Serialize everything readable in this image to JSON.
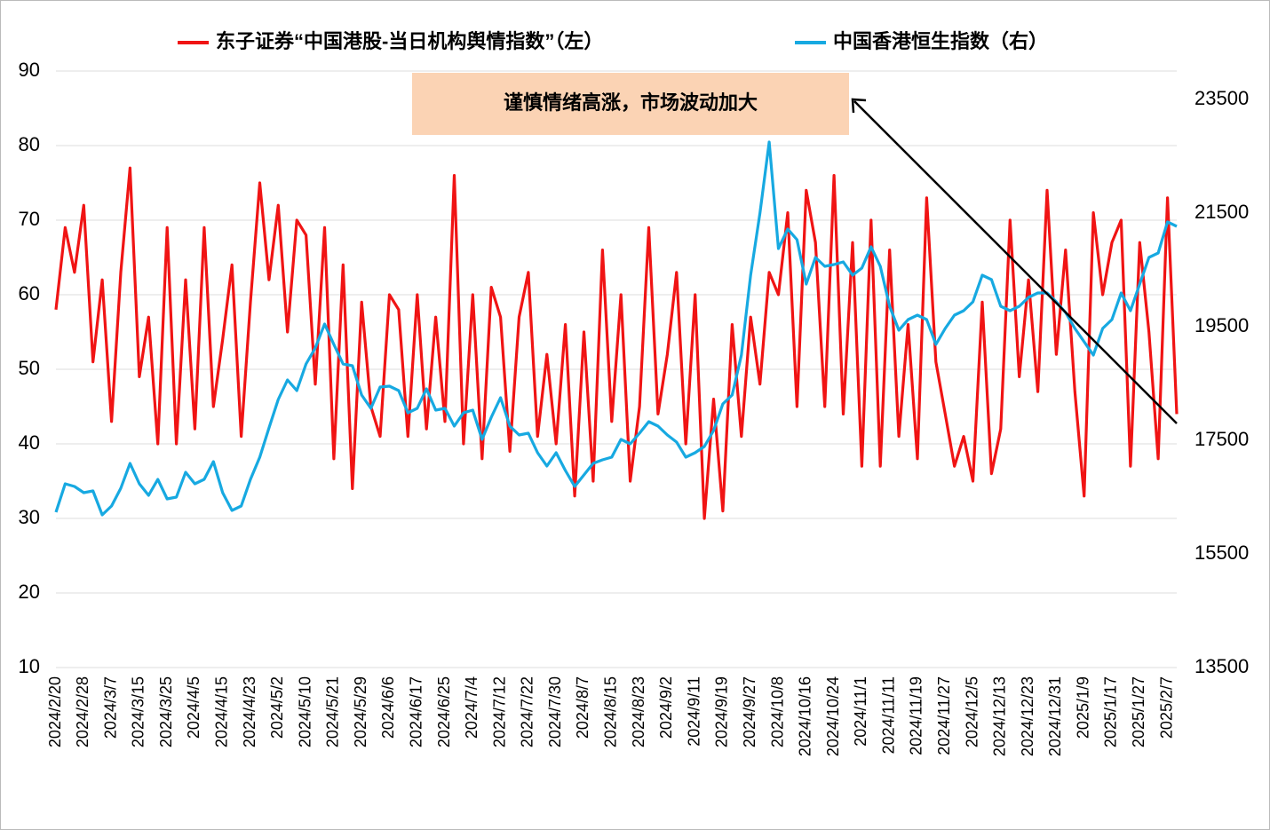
{
  "chart_data": {
    "type": "line",
    "legend_position": "top",
    "annotation": "谨慎情绪高涨，市场波动加大",
    "categories": [
      "2024/2/20",
      null,
      null,
      "2024/2/28",
      null,
      null,
      "2024/3/7",
      null,
      null,
      "2024/3/15",
      null,
      null,
      "2024/3/25",
      null,
      null,
      "2024/4/5",
      null,
      null,
      "2024/4/15",
      null,
      null,
      "2024/4/23",
      null,
      null,
      "2024/5/2",
      null,
      null,
      "2024/5/10",
      null,
      null,
      "2024/5/21",
      null,
      null,
      "2024/5/29",
      null,
      null,
      "2024/6/6",
      null,
      null,
      "2024/6/17",
      null,
      null,
      "2024/6/25",
      null,
      null,
      "2024/7/4",
      null,
      null,
      "2024/7/12",
      null,
      null,
      "2024/7/22",
      null,
      null,
      "2024/7/30",
      null,
      null,
      "2024/8/7",
      null,
      null,
      "2024/8/15",
      null,
      null,
      "2024/8/23",
      null,
      null,
      "2024/9/2",
      null,
      null,
      "2024/9/11",
      null,
      null,
      "2024/9/19",
      null,
      null,
      "2024/9/27",
      null,
      null,
      "2024/10/8",
      null,
      null,
      "2024/10/16",
      null,
      null,
      "2024/10/24",
      null,
      null,
      "2024/11/1",
      null,
      null,
      "2024/11/11",
      null,
      null,
      "2024/11/19",
      null,
      null,
      "2024/11/27",
      null,
      null,
      "2024/12/5",
      null,
      null,
      "2024/12/13",
      null,
      null,
      "2024/12/23",
      null,
      null,
      "2024/12/31",
      null,
      null,
      "2025/1/9",
      null,
      null,
      "2025/1/17",
      null,
      null,
      "2025/1/27",
      null,
      null,
      "2025/2/7",
      null
    ],
    "series": [
      {
        "name": "东子证券“中国港股-当日机构舆情指数”（左）",
        "color": "#f01414",
        "axis": "y",
        "values": [
          58,
          69,
          63,
          72,
          51,
          62,
          43,
          63,
          77,
          49,
          57,
          40,
          69,
          40,
          62,
          42,
          69,
          45,
          54,
          64,
          41,
          59,
          75,
          62,
          72,
          55,
          70,
          68,
          48,
          69,
          38,
          64,
          34,
          59,
          45,
          41,
          60,
          58,
          41,
          60,
          42,
          57,
          43,
          76,
          40,
          60,
          38,
          61,
          57,
          39,
          57,
          63,
          41,
          52,
          40,
          56,
          33,
          55,
          35,
          66,
          43,
          60,
          35,
          45,
          69,
          44,
          52,
          63,
          40,
          60,
          30,
          46,
          31,
          56,
          41,
          57,
          48,
          63,
          60,
          71,
          45,
          74,
          67,
          45,
          76,
          44,
          67,
          37,
          70,
          37,
          66,
          41,
          56,
          38,
          73,
          51,
          44,
          37,
          41,
          35,
          59,
          36,
          42,
          70,
          49,
          62,
          47,
          74,
          52,
          66,
          47,
          33,
          71,
          60,
          67,
          70,
          37,
          67,
          55,
          38,
          73,
          44
        ]
      },
      {
        "name": "中国香港恒生指数（右）",
        "color": "#17a9e1",
        "axis": "y2",
        "values": [
          16234,
          16734,
          16688,
          16578,
          16609,
          16188,
          16344,
          16656,
          17094,
          16734,
          16531,
          16813,
          16469,
          16500,
          16938,
          16734,
          16813,
          17125,
          16578,
          16266,
          16344,
          16813,
          17203,
          17719,
          18219,
          18563,
          18375,
          18844,
          19125,
          19547,
          19188,
          18844,
          18813,
          18297,
          18063,
          18438,
          18453,
          18375,
          17984,
          18063,
          18406,
          18031,
          18063,
          17750,
          17984,
          18031,
          17516,
          17906,
          18250,
          17750,
          17594,
          17625,
          17281,
          17047,
          17281,
          16969,
          16688,
          16891,
          17094,
          17156,
          17203,
          17516,
          17438,
          17625,
          17828,
          17750,
          17594,
          17469,
          17203,
          17281,
          17391,
          17672,
          18141,
          18297,
          19000,
          20406,
          21500,
          22750,
          20875,
          21219,
          21031,
          20250,
          20719,
          20563,
          20594,
          20641,
          20406,
          20531,
          20906,
          20563,
          19859,
          19438,
          19625,
          19703,
          19625,
          19188,
          19469,
          19703,
          19781,
          19938,
          20406,
          20328,
          19859,
          19781,
          19859,
          20016,
          20094,
          20094,
          19938,
          19750,
          19469,
          19234,
          19000,
          19469,
          19625,
          20094,
          19781,
          20250,
          20719,
          20797,
          21344,
          21266
        ]
      }
    ],
    "ylim": [
      10,
      90
    ],
    "yticks": [
      10,
      20,
      30,
      40,
      50,
      60,
      70,
      80,
      90
    ],
    "y2lim": [
      13500,
      24000
    ],
    "y2ticks": [
      13500,
      15500,
      17500,
      19500,
      21500,
      23500
    ],
    "grid": true
  }
}
